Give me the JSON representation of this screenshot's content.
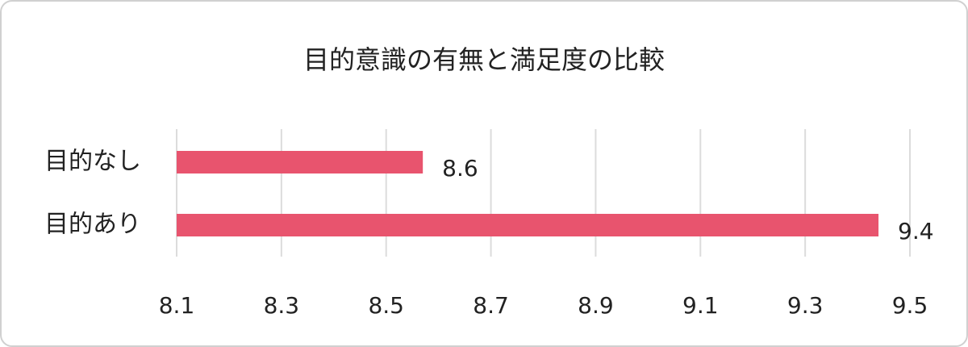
{
  "chart_data": {
    "type": "bar",
    "orientation": "horizontal",
    "title": "目的意識の有無と満足度の比較",
    "categories": [
      "目的なし",
      "目的あり"
    ],
    "values": [
      8.57,
      9.44
    ],
    "value_labels": [
      "8.6",
      "9.4"
    ],
    "color": "#e8546e",
    "xlim": [
      8.1,
      9.5
    ],
    "xticks": [
      8.1,
      8.3,
      8.5,
      8.7,
      8.9,
      9.1,
      9.3,
      9.5
    ],
    "grid": true
  }
}
